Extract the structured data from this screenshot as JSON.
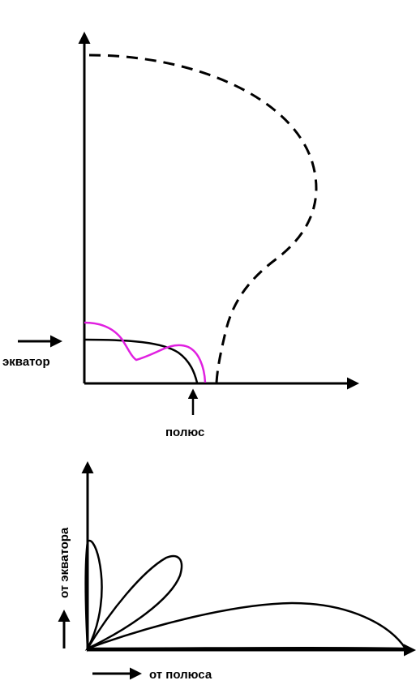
{
  "diagram_top": {
    "labels": {
      "equator": "экватор",
      "pole": "полюс"
    },
    "curves": [
      {
        "style": "solid",
        "color": "#000000"
      },
      {
        "style": "solid",
        "color": "#e020e0"
      },
      {
        "style": "dashed",
        "color": "#000000"
      }
    ]
  },
  "diagram_bottom": {
    "labels": {
      "from_equator": "от экватора",
      "from_pole": "от полюса"
    },
    "lobes": [
      {
        "color": "#000000"
      },
      {
        "color": "#000000"
      },
      {
        "color": "#000000"
      }
    ]
  }
}
